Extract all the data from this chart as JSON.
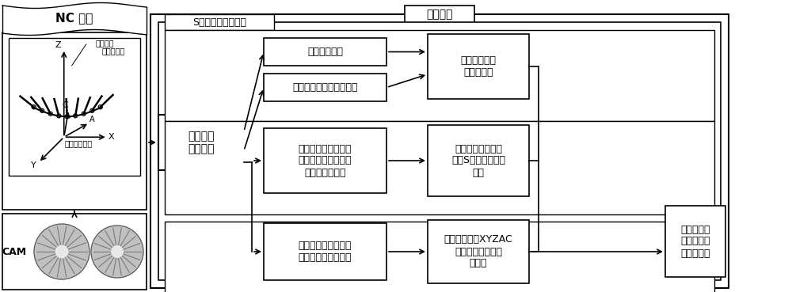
{
  "title": "数控系统",
  "subtitle": "S形加减速速度规划",
  "nc_label": "NC 程序",
  "cam_label": "CAM",
  "box1_text": "数控系统\n程序译码",
  "box2a_text": "路径信息获取",
  "box2b_text": "机床进给轴运动参数获取",
  "box3_text": "小线段速度、\n加速度约束",
  "box4_text": "反向求解线段起始点\n速度，对起始点的限\n制速度进行修正",
  "box5_text": "正向速度规划：非\n对称S形加减速分类\n模型",
  "box6_text": "线性插值求解工件坐\n标系下各轴的坐标值",
  "box7_text": "逆向变换求解XYZAC\n联动各轴的插补指\n令位置",
  "box8_text": "实时内核：\n输出各进给\n轴位移序列",
  "label_tool_vector": "刀轴矢量",
  "label_tool_tip": "刀尖点位置",
  "label_path": "连续线段路径",
  "bg_color": "#ffffff",
  "box_facecolor": "#ffffff",
  "border_color": "#000000",
  "text_color": "#000000",
  "arrow_color": "#000000"
}
